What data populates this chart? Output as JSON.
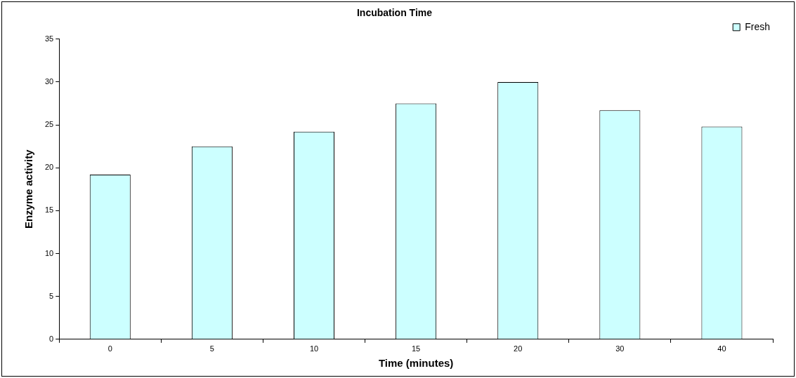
{
  "chart_data": {
    "type": "bar",
    "title": "Incubation Time",
    "xlabel": "Time (minutes)",
    "ylabel": "Enzyme activity",
    "categories": [
      "0",
      "5",
      "10",
      "15",
      "20",
      "30",
      "40"
    ],
    "series": [
      {
        "name": "Fresh",
        "color": "#ccffff",
        "values": [
          19.2,
          22.5,
          24.2,
          27.5,
          30,
          26.7,
          24.8
        ]
      }
    ],
    "ylim": [
      0,
      35
    ],
    "yticks": [
      0,
      5,
      10,
      15,
      20,
      25,
      30,
      35
    ],
    "grid": false,
    "legend": "top right"
  }
}
